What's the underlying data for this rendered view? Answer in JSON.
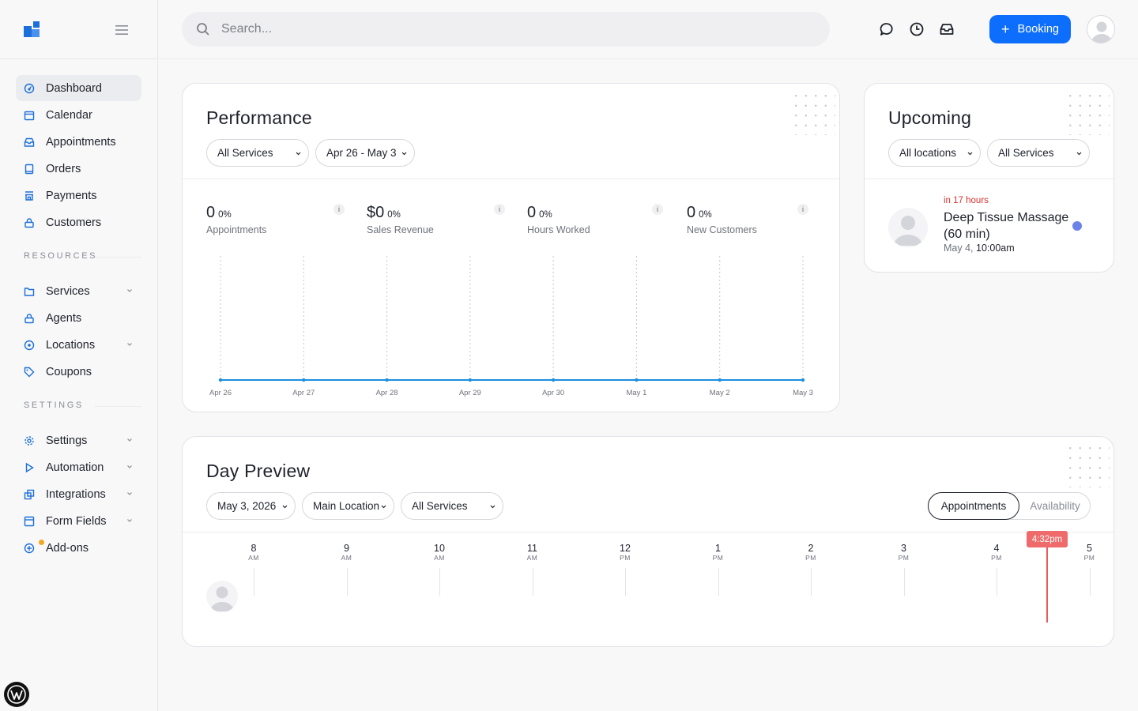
{
  "sidebar": {
    "items": [
      {
        "label": "Dashboard"
      },
      {
        "label": "Calendar"
      },
      {
        "label": "Appointments"
      },
      {
        "label": "Orders"
      },
      {
        "label": "Payments"
      },
      {
        "label": "Customers"
      }
    ],
    "resources_label": "RESOURCES",
    "resources": [
      {
        "label": "Services"
      },
      {
        "label": "Agents"
      },
      {
        "label": "Locations"
      },
      {
        "label": "Coupons"
      }
    ],
    "settings_label": "SETTINGS",
    "settings": [
      {
        "label": "Settings"
      },
      {
        "label": "Automation"
      },
      {
        "label": "Integrations"
      },
      {
        "label": "Form Fields"
      },
      {
        "label": "Add-ons"
      }
    ]
  },
  "topbar": {
    "search_placeholder": "Search...",
    "booking_label": "Booking"
  },
  "performance": {
    "title": "Performance",
    "filter_services": "All Services",
    "filter_range": "Apr 26 - May 3",
    "stats": [
      {
        "value": "0",
        "pct": "0%",
        "label": "Appointments"
      },
      {
        "value": "$0",
        "pct": "0%",
        "label": "Sales Revenue"
      },
      {
        "value": "0",
        "pct": "0%",
        "label": "Hours Worked"
      },
      {
        "value": "0",
        "pct": "0%",
        "label": "New Customers"
      }
    ],
    "info_glyph": "i"
  },
  "chart_data": {
    "type": "line",
    "categories": [
      "Apr 26",
      "Apr 27",
      "Apr 28",
      "Apr 29",
      "Apr 30",
      "May 1",
      "May 2",
      "May 3"
    ],
    "series": [
      {
        "values": [
          0,
          0,
          0,
          0,
          0,
          0,
          0,
          0
        ]
      }
    ],
    "title": "",
    "xlabel": "",
    "ylabel": "",
    "grid": "vertical dotted",
    "color": "#1b8fe0"
  },
  "upcoming": {
    "title": "Upcoming",
    "filter_locations": "All locations",
    "filter_services": "All Services",
    "item": {
      "when": "in 17 hours",
      "title": "Deep Tissue Massage (60 min)",
      "date": "May 4,",
      "time": "10:00am"
    }
  },
  "day_preview": {
    "title": "Day Preview",
    "filter_date": "May 3, 2026",
    "filter_location": "Main Location",
    "filter_services": "All Services",
    "toggle_on": "Appointments",
    "toggle_off": "Availability",
    "hours": [
      {
        "h": "8",
        "ap": "AM"
      },
      {
        "h": "9",
        "ap": "AM"
      },
      {
        "h": "10",
        "ap": "AM"
      },
      {
        "h": "11",
        "ap": "AM"
      },
      {
        "h": "12",
        "ap": "PM"
      },
      {
        "h": "1",
        "ap": "PM"
      },
      {
        "h": "2",
        "ap": "PM"
      },
      {
        "h": "3",
        "ap": "PM"
      },
      {
        "h": "4",
        "ap": "PM"
      },
      {
        "h": "5",
        "ap": "PM"
      }
    ],
    "now_label": "4:32pm"
  },
  "colors": {
    "accent": "#0d6efd",
    "nav_icon": "#1b6fd8",
    "now": "#ef6b6b",
    "upcoming_when": "#d9322f"
  }
}
